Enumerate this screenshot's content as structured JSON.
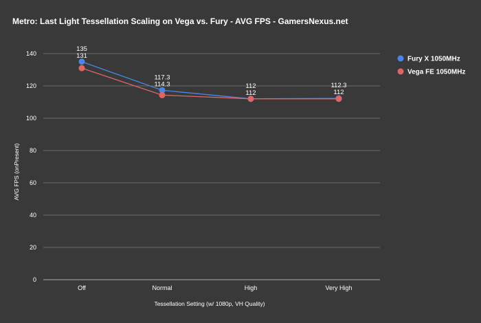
{
  "chart_data": {
    "type": "line",
    "title": "Metro: Last Light Tessellation Scaling on Vega vs. Fury - AVG FPS - GamersNexus.net",
    "xlabel": "Tessellation Setting (w/ 1080p, VH Quality)",
    "ylabel": "AVG FPS (onPresent)",
    "categories": [
      "Off",
      "Normal",
      "High",
      "Very High"
    ],
    "ylim": [
      0,
      140
    ],
    "yticks": [
      0,
      20,
      40,
      60,
      80,
      100,
      120,
      140
    ],
    "grid": true,
    "legend_position": "right",
    "series": [
      {
        "name": "Fury X 1050MHz",
        "color": "#4a86e8",
        "values": [
          135,
          117.3,
          112,
          112.3
        ],
        "labels": [
          "135",
          "117.3",
          "112",
          "112.3"
        ]
      },
      {
        "name": "Vega FE 1050MHz",
        "color": "#e06666",
        "values": [
          131,
          114.3,
          112,
          112
        ],
        "labels": [
          "131",
          "114.3",
          "112",
          "112"
        ]
      }
    ]
  }
}
